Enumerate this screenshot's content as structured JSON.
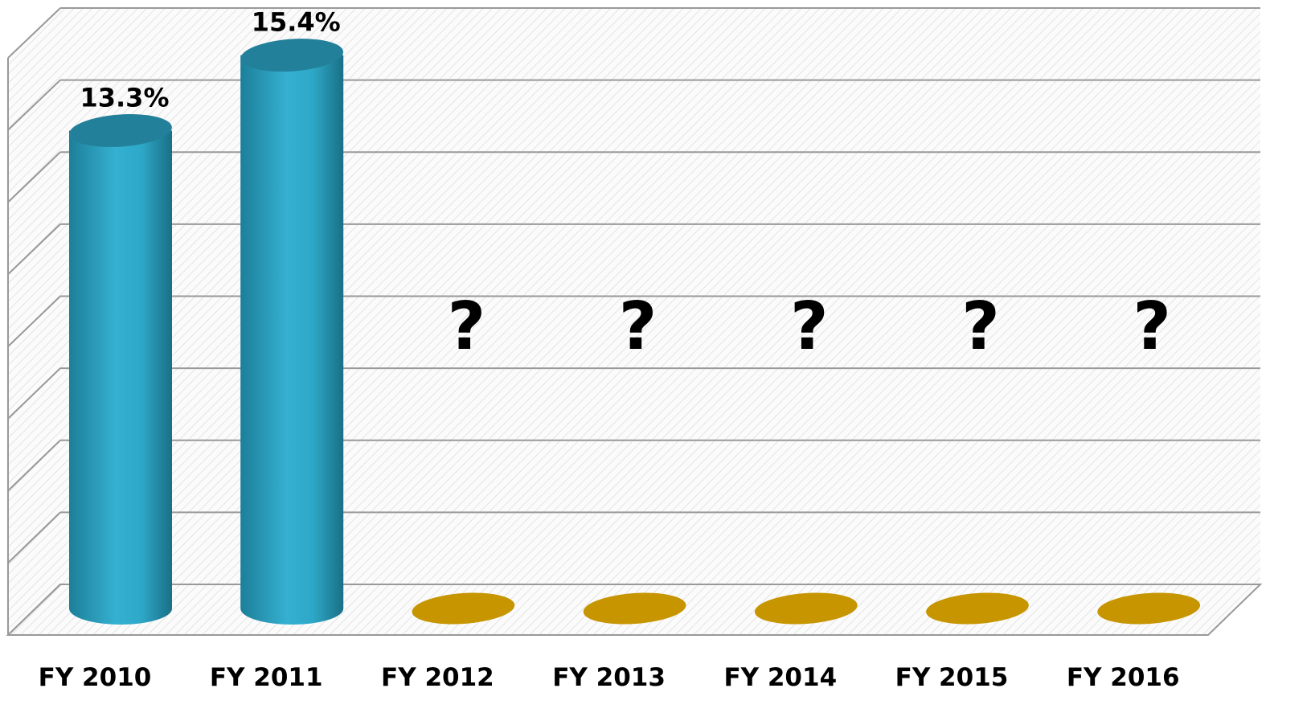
{
  "chart_data": {
    "type": "bar3d",
    "categories": [
      "FY 2010",
      "FY 2011",
      "FY 2012",
      "FY 2013",
      "FY 2014",
      "FY 2015",
      "FY 2016"
    ],
    "values": [
      13.3,
      15.4,
      null,
      null,
      null,
      null,
      null
    ],
    "value_labels": [
      "13.3%",
      "15.4%",
      "?",
      "?",
      "?",
      "?",
      "?"
    ],
    "color": "#2fa9c9",
    "placeholder_color": "#c69500",
    "ylim": [
      0,
      16
    ],
    "yticks": [
      0,
      2,
      4,
      6,
      8,
      10,
      12,
      14,
      16
    ],
    "grid": true
  }
}
